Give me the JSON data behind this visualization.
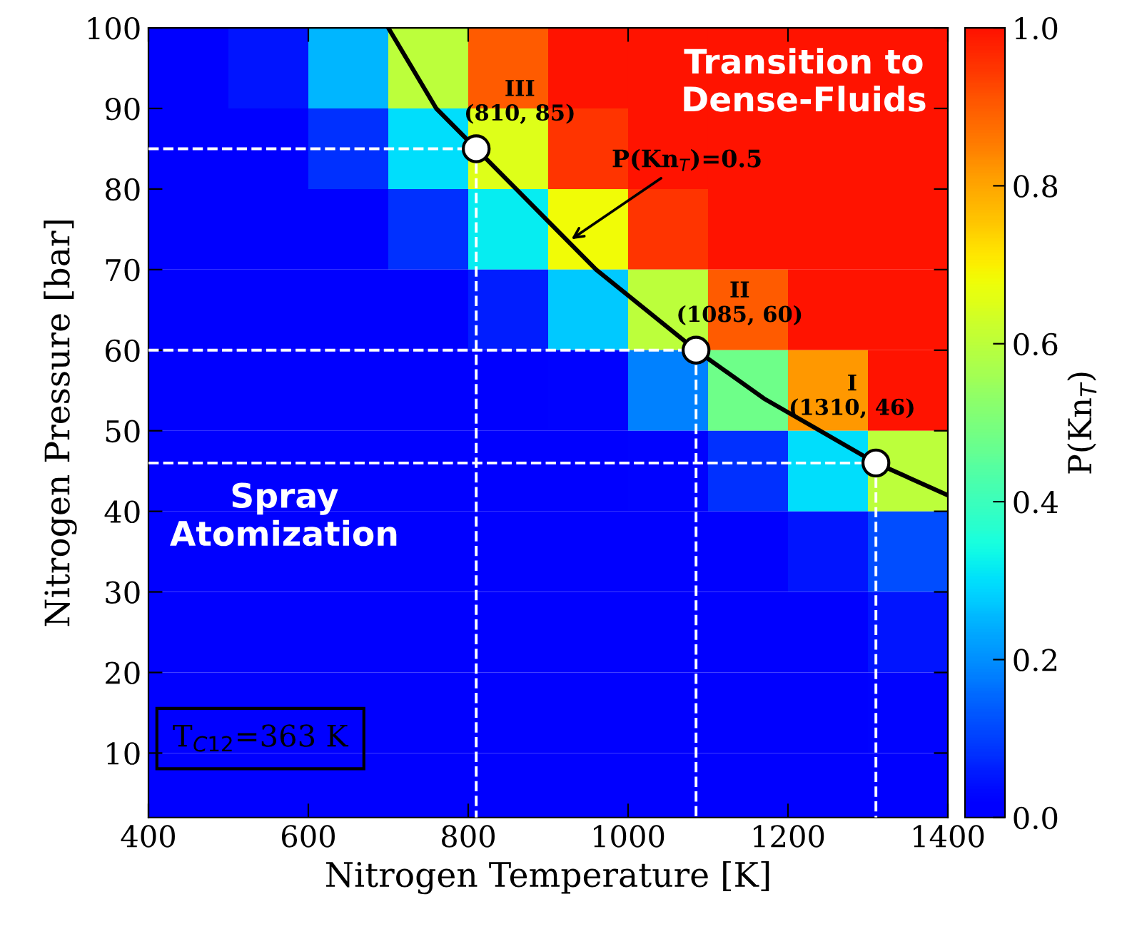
{
  "chart_data": {
    "type": "heatmap",
    "xlabel": "Nitrogen Temperature [K]",
    "ylabel": "Nitrogen Pressure [bar]",
    "clabel": "P(Kn$_{T}$)",
    "x": [
      450,
      550,
      650,
      750,
      850,
      950,
      1050,
      1150,
      1250,
      1350
    ],
    "y": [
      95,
      85,
      75,
      65,
      55,
      45,
      35,
      25,
      15,
      5
    ],
    "cells": [
      [
        0,
        0.05,
        0.25,
        0.6,
        0.9,
        1,
        1,
        1,
        1,
        1
      ],
      [
        0,
        0,
        0.08,
        0.3,
        0.65,
        0.95,
        1,
        1,
        1,
        1
      ],
      [
        0,
        0,
        0,
        0.08,
        0.32,
        0.68,
        0.95,
        1,
        1,
        1
      ],
      [
        0,
        0,
        0,
        0,
        0.06,
        0.27,
        0.6,
        0.9,
        1,
        1
      ],
      [
        0,
        0,
        0,
        0,
        0,
        0.02,
        0.18,
        0.48,
        0.82,
        1
      ],
      [
        0,
        0,
        0,
        0,
        0,
        0,
        0.02,
        0.08,
        0.3,
        0.6
      ],
      [
        0,
        0,
        0,
        0,
        0,
        0,
        0,
        0,
        0.05,
        0.12
      ],
      [
        0,
        0,
        0,
        0,
        0,
        0,
        0,
        0,
        0,
        0.05
      ],
      [
        0,
        0,
        0,
        0,
        0,
        0,
        0,
        0,
        0,
        0.02
      ],
      [
        0,
        0,
        0,
        0,
        0,
        0,
        0,
        0,
        0,
        0
      ]
    ],
    "clim": [
      0,
      1
    ],
    "cticks": [
      {
        "value": 0,
        "label": "0.0"
      },
      0.2,
      0.4,
      0.6,
      0.8,
      {
        "value": 1,
        "label": "1.0"
      }
    ],
    "xlim": [
      400,
      1400
    ],
    "ylim": [
      2,
      100
    ],
    "xticks": [
      400,
      600,
      800,
      1000,
      1200,
      1400
    ],
    "yticks": [
      10,
      20,
      30,
      40,
      50,
      60,
      70,
      80,
      90,
      100
    ],
    "series": [
      {
        "type": "line",
        "color": "#000000",
        "line_style": "solid",
        "x": [
          700,
          760,
          810,
          860,
          960,
          1085,
          1170,
          1240,
          1310,
          1400
        ],
        "values": [
          100,
          90,
          85,
          80,
          70,
          60,
          54,
          50,
          46,
          42
        ]
      },
      {
        "type": "line",
        "color": "#ffffff",
        "line_style": "dashed",
        "x": [
          400,
          810
        ],
        "values": [
          85,
          85
        ]
      },
      {
        "type": "line",
        "color": "#ffffff",
        "line_style": "dashed",
        "x": [
          810,
          810
        ],
        "values": [
          85,
          2
        ]
      },
      {
        "type": "line",
        "color": "#ffffff",
        "line_style": "dashed",
        "x": [
          400,
          1085
        ],
        "values": [
          60,
          60
        ]
      },
      {
        "type": "line",
        "color": "#ffffff",
        "line_style": "dashed",
        "x": [
          1085,
          1085
        ],
        "values": [
          60,
          2
        ]
      },
      {
        "type": "line",
        "color": "#ffffff",
        "line_style": "dashed",
        "x": [
          400,
          1310
        ],
        "values": [
          46,
          46
        ]
      },
      {
        "type": "line",
        "color": "#ffffff",
        "line_style": "dashed",
        "x": [
          1310,
          1310
        ],
        "values": [
          46,
          2
        ]
      },
      {
        "type": "scatter",
        "color": "#ffffff",
        "marker": "circle",
        "x": [
          810,
          1085,
          1310
        ],
        "values": [
          85,
          60,
          46
        ]
      }
    ],
    "annotations": [
      {
        "text": "III\n(810, 85)",
        "x": 810,
        "y": 85
      },
      {
        "text": "II\n(1085, 60)",
        "x": 1085,
        "y": 60
      },
      {
        "text": "I\n(1310, 46)",
        "x": 1310,
        "y": 46
      },
      {
        "text": "P(Kn$_{T}$)=0.5",
        "x": 925,
        "y": 73.5
      },
      "Transition to\nDense-Fluids",
      "Spray\nAtomization",
      "T$_{C12}$=363 K"
    ],
    "grid": false
  }
}
